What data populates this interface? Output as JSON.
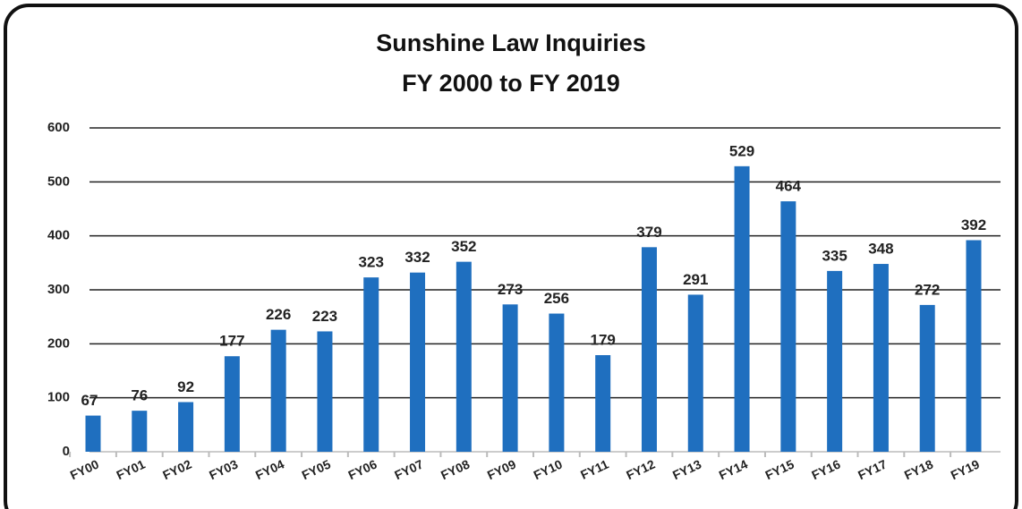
{
  "chart_data": {
    "type": "bar",
    "title": "Sunshine Law Inquiries",
    "subtitle": "FY 2000 to FY 2019",
    "categories": [
      "FY00",
      "FY01",
      "FY02",
      "FY03",
      "FY04",
      "FY05",
      "FY06",
      "FY07",
      "FY08",
      "FY09",
      "FY10",
      "FY11",
      "FY12",
      "FY13",
      "FY14",
      "FY15",
      "FY16",
      "FY17",
      "FY18",
      "FY19"
    ],
    "values": [
      67,
      76,
      92,
      177,
      226,
      223,
      323,
      332,
      352,
      273,
      256,
      179,
      379,
      291,
      529,
      464,
      335,
      348,
      272,
      392
    ],
    "color": "#1f6fbf",
    "ylim": [
      0,
      600
    ],
    "yticks": [
      0,
      100,
      200,
      300,
      400,
      500,
      600
    ],
    "grid": true
  }
}
